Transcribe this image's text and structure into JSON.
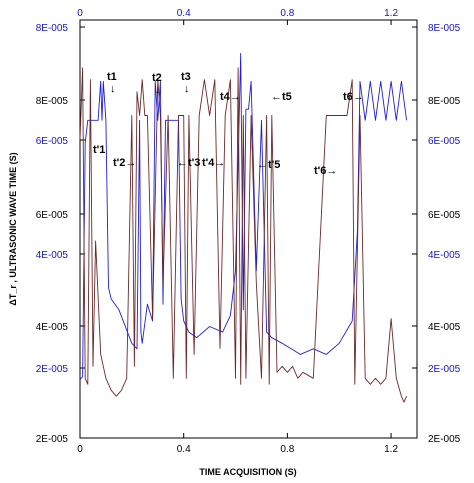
{
  "chart_data": {
    "type": "line",
    "xlabel": "TIME ACQUISITION (S)",
    "ylabel": "ΔT_r , ULTRASONIC WAVE TIME (S)",
    "xlim": [
      0,
      1.3
    ],
    "x_ticks": [
      "0",
      "0.4",
      "0.8",
      "1.2"
    ],
    "y_ticks_left_outer": [
      "2E-005",
      "4E-005",
      "6E-005",
      "8E-005"
    ],
    "y_ticks_left_inner": [
      "2E-005",
      "4E-005",
      "6E-005",
      "8E-005"
    ],
    "y_ticks_right_outer": [
      "2E-005",
      "4E-005",
      "6E-005",
      "8E-005"
    ],
    "y_ticks_right_inner": [
      "2E-005",
      "4E-005",
      "6E-005",
      "8E-005"
    ],
    "colors": {
      "blue": "#1f1fd6",
      "brown": "#6b2a2a",
      "axis": "#000000",
      "blue_tick": "#1414c8"
    },
    "series": [
      {
        "color": "blue",
        "x": [
          0.0,
          0.01,
          0.02,
          0.03,
          0.05,
          0.07,
          0.08,
          0.085,
          0.09,
          0.1,
          0.11,
          0.12,
          0.15,
          0.2,
          0.22,
          0.23,
          0.235,
          0.24,
          0.26,
          0.28,
          0.29,
          0.3,
          0.31,
          0.32,
          0.33,
          0.36,
          0.38,
          0.39,
          0.4,
          0.42,
          0.45,
          0.5,
          0.55,
          0.58,
          0.6,
          0.62,
          0.63,
          0.64,
          0.65,
          0.66,
          0.68,
          0.7,
          0.72,
          0.74,
          0.78,
          0.85,
          0.9,
          0.95,
          1.0,
          1.05,
          1.07,
          1.08,
          1.1,
          1.12,
          1.14,
          1.16,
          1.18,
          1.2,
          1.22,
          1.24,
          1.26
        ],
        "y": [
          3.55e-05,
          3.6e-05,
          7.8e-05,
          8.2e-05,
          8.2e-05,
          8.2e-05,
          8.9e-05,
          8.2e-05,
          8.9e-05,
          8.2e-05,
          5.2e-05,
          5e-05,
          4.8e-05,
          4.2e-05,
          4.1e-05,
          8.2e-05,
          4.4e-05,
          4.2e-05,
          4.9e-05,
          4.6e-05,
          8.9e-05,
          8.2e-05,
          8.9e-05,
          4.9e-05,
          8.2e-05,
          8.2e-05,
          8.2e-05,
          5e-05,
          4.6e-05,
          4.4e-05,
          4.3e-05,
          4.5e-05,
          4.4e-05,
          4.7e-05,
          5.5e-05,
          9.4e-05,
          4.8e-05,
          8.4e-05,
          8.4e-05,
          8.9e-05,
          5.5e-05,
          8.2e-05,
          4.4e-05,
          4.3e-05,
          4.2e-05,
          4e-05,
          4.1e-05,
          4e-05,
          4.2e-05,
          4.6e-05,
          6.2e-05,
          8.9e-05,
          8.2e-05,
          8.9e-05,
          8.2e-05,
          8.9e-05,
          8.2e-05,
          8.9e-05,
          8.2e-05,
          8.9e-05,
          8.2e-05
        ]
      },
      {
        "color": "brown",
        "x": [
          0.0,
          0.01,
          0.02,
          0.03,
          0.04,
          0.05,
          0.06,
          0.08,
          0.1,
          0.12,
          0.14,
          0.16,
          0.18,
          0.2,
          0.21,
          0.22,
          0.23,
          0.24,
          0.25,
          0.26,
          0.28,
          0.3,
          0.31,
          0.32,
          0.34,
          0.36,
          0.38,
          0.4,
          0.41,
          0.42,
          0.44,
          0.46,
          0.48,
          0.5,
          0.52,
          0.54,
          0.56,
          0.58,
          0.6,
          0.61,
          0.62,
          0.63,
          0.64,
          0.66,
          0.68,
          0.7,
          0.72,
          0.73,
          0.74,
          0.76,
          0.78,
          0.8,
          0.82,
          0.84,
          0.86,
          0.9,
          0.95,
          1.0,
          1.03,
          1.05,
          1.06,
          1.08,
          1.1,
          1.12,
          1.14,
          1.16,
          1.18,
          1.2,
          1.22,
          1.24,
          1.25,
          1.26
        ],
        "y": [
          6e-05,
          7.2e-05,
          2e-05,
          1.9e-05,
          7e-05,
          2.2e-05,
          4.3e-05,
          2.4e-05,
          2e-05,
          1.8e-05,
          1.7e-05,
          1.8e-05,
          2e-05,
          6.4e-05,
          2.2e-05,
          6.8e-05,
          6.4e-05,
          7e-05,
          6.4e-05,
          6.4e-05,
          3e-05,
          7e-05,
          6.4e-05,
          3.6e-05,
          6.4e-05,
          2e-05,
          6.4e-05,
          6.4e-05,
          2e-05,
          6.4e-05,
          2.4e-05,
          6.4e-05,
          7e-05,
          6.4e-05,
          7e-05,
          2.5e-05,
          6.4e-05,
          7e-05,
          2e-05,
          7.2e-05,
          1.9e-05,
          6.4e-05,
          2e-05,
          6.4e-05,
          3.6e-05,
          2e-05,
          6.4e-05,
          1.9e-05,
          6.4e-05,
          2.1e-05,
          2.2e-05,
          2.1e-05,
          2.2e-05,
          2e-05,
          2.1e-05,
          2e-05,
          6.4e-05,
          6.4e-05,
          6.4e-05,
          7e-05,
          1.9e-05,
          6.4e-05,
          2e-05,
          1.9e-05,
          2e-05,
          1.9e-05,
          2e-05,
          3e-05,
          2e-05,
          1.7e-05,
          1.6e-05,
          1.7e-05
        ]
      }
    ],
    "annotations": [
      {
        "label": "t1",
        "arrow": "down"
      },
      {
        "label": "t2",
        "arrow": "down"
      },
      {
        "label": "t3",
        "arrow": "down"
      },
      {
        "label": "t4",
        "arrow": "right"
      },
      {
        "label": "t5",
        "arrow": "left"
      },
      {
        "label": "t6",
        "arrow": "right"
      },
      {
        "label": "t'1",
        "arrow": "none"
      },
      {
        "label": "t'2",
        "arrow": "right"
      },
      {
        "label": "t'3",
        "arrow": "left"
      },
      {
        "label": "t'4",
        "arrow": "right"
      },
      {
        "label": "t'5",
        "arrow": "left"
      },
      {
        "label": "t'6",
        "arrow": "right"
      }
    ]
  }
}
